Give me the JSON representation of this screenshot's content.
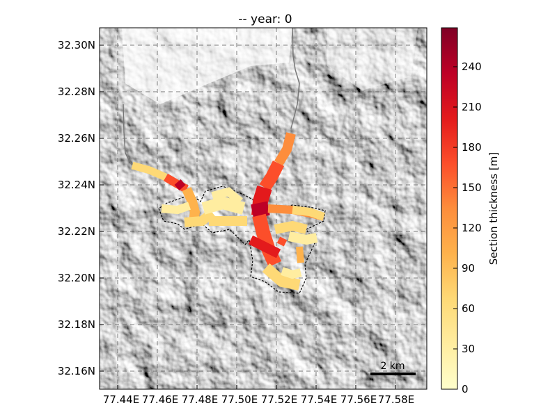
{
  "title": "-- year: 0",
  "map": {
    "y_ticks": [
      "32.30N",
      "32.28N",
      "32.26N",
      "32.24N",
      "32.22N",
      "32.20N",
      "32.18N",
      "32.16N"
    ],
    "x_ticks": [
      "77.44E",
      "77.46E",
      "77.48E",
      "77.50E",
      "77.52E",
      "77.54E",
      "77.56E",
      "77.58E"
    ],
    "scale_bar_label": "2 km",
    "grid": true
  },
  "colorbar": {
    "label": "Section thickness [m]",
    "ticks": [
      "0",
      "30",
      "60",
      "90",
      "120",
      "150",
      "180",
      "210",
      "240"
    ],
    "range": [
      0,
      280
    ],
    "colormap": [
      "#ffffcc",
      "#ffeda0",
      "#fed976",
      "#feb24c",
      "#fd8d3c",
      "#fc4e2a",
      "#e31a1c",
      "#bd0026",
      "#800026"
    ]
  }
}
